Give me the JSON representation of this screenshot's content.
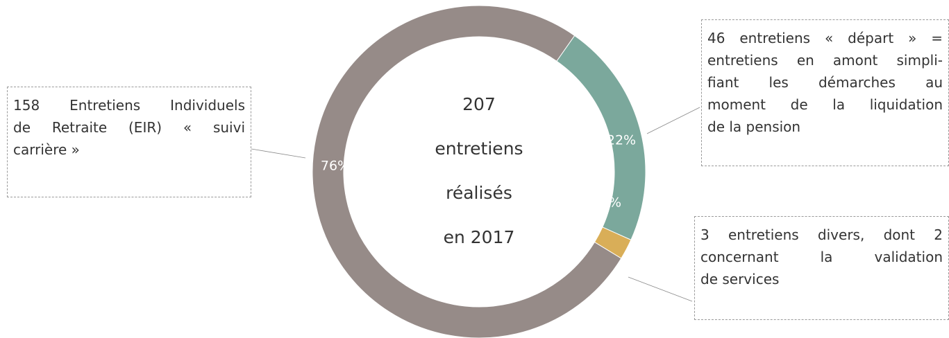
{
  "chart_data": {
    "type": "donut",
    "categories": [
      "suivi carrière",
      "départ",
      "divers"
    ],
    "values": [
      76,
      22,
      2
    ],
    "value_labels": [
      "76%",
      "22%",
      "2%"
    ],
    "colors": [
      "#968b88",
      "#7ba89c",
      "#d9ae58"
    ],
    "center_text": [
      "207",
      "entretiens",
      "réalisés",
      "en 2017"
    ],
    "annotations": [
      {
        "lines": [
          "158 Entretiens Individuels",
          "de Retraite (EIR) « suivi",
          "carrière »"
        ]
      },
      {
        "lines": [
          "46 entretiens « départ » =",
          "entretiens en amont simpli-",
          "fiant les démarches au",
          "moment de la liquidation",
          "de la pension"
        ]
      },
      {
        "lines": [
          "3 entretiens divers, dont 2",
          "concernant la validation",
          "de services"
        ]
      }
    ]
  }
}
